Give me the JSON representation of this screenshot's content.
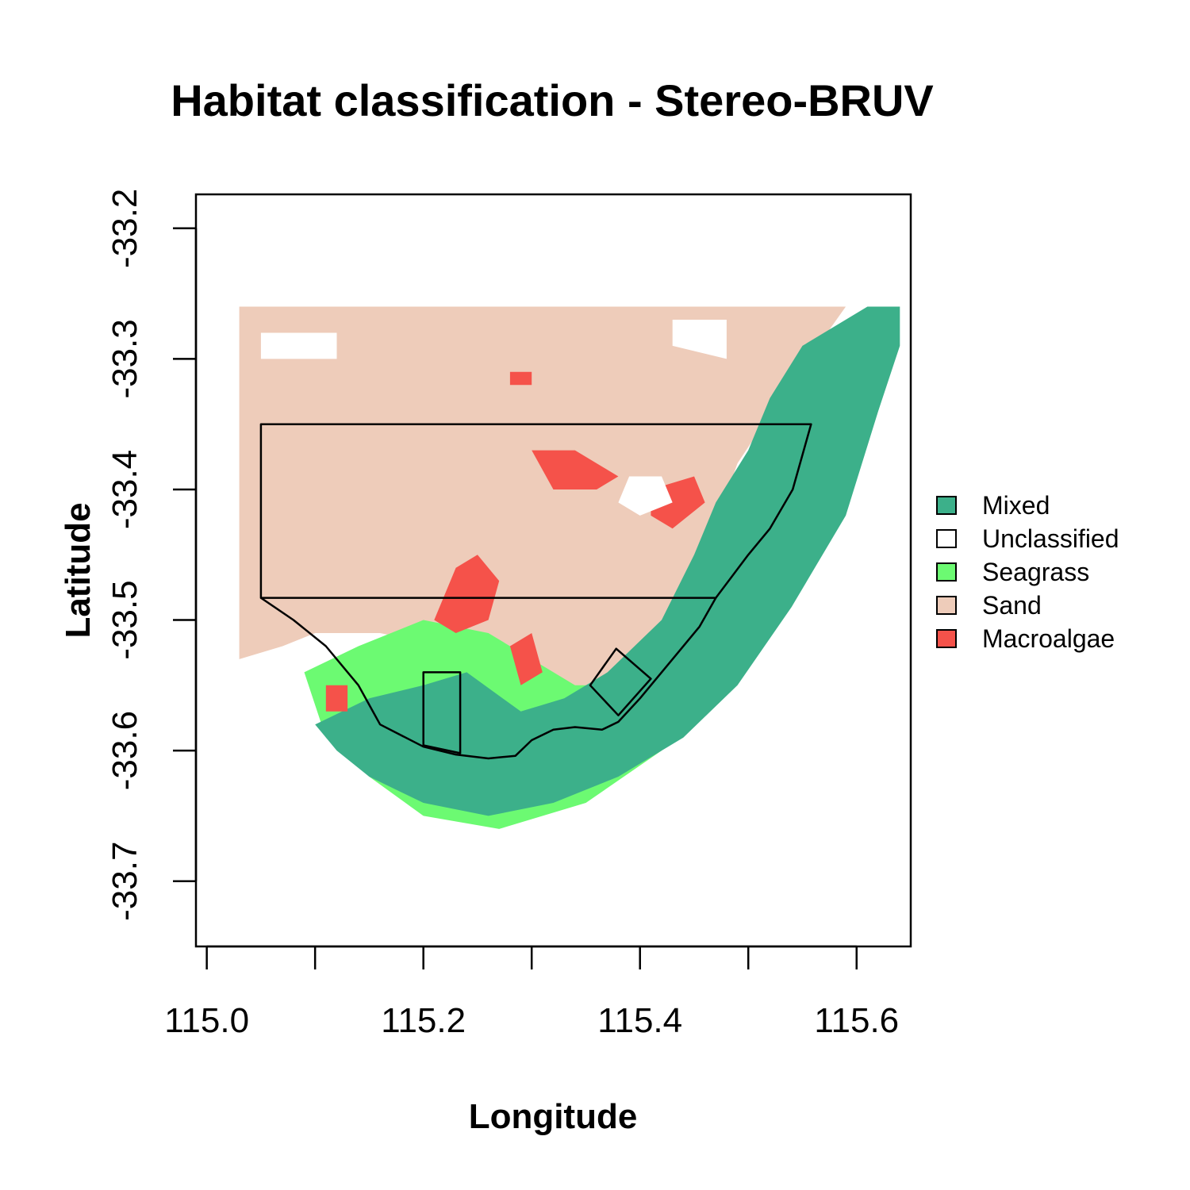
{
  "chart_data": {
    "type": "heatmap",
    "title": "Habitat classification - Stereo-BRUV",
    "xlabel": "Longitude",
    "ylabel": "Latitude",
    "xlim": [
      114.99,
      115.65
    ],
    "ylim": [
      -33.75,
      -33.174
    ],
    "x_ticks": [
      {
        "value": 115.0,
        "label": "115.0"
      },
      {
        "value": 115.1,
        "label": ""
      },
      {
        "value": 115.2,
        "label": "115.2"
      },
      {
        "value": 115.3,
        "label": ""
      },
      {
        "value": 115.4,
        "label": "115.4"
      },
      {
        "value": 115.5,
        "label": ""
      },
      {
        "value": 115.6,
        "label": "115.6"
      }
    ],
    "y_ticks": [
      {
        "value": -33.2,
        "label": "-33.2"
      },
      {
        "value": -33.3,
        "label": "-33.3"
      },
      {
        "value": -33.4,
        "label": "-33.4"
      },
      {
        "value": -33.5,
        "label": "-33.5"
      },
      {
        "value": -33.6,
        "label": "-33.6"
      },
      {
        "value": -33.7,
        "label": "-33.7"
      }
    ],
    "legend_position": "right",
    "classes": [
      {
        "name": "Mixed",
        "color": "#3CB08A"
      },
      {
        "name": "Unclassified",
        "color": "#FFFFFF"
      },
      {
        "name": "Seagrass",
        "color": "#6CFA72"
      },
      {
        "name": "Sand",
        "color": "#EECCBA"
      },
      {
        "name": "Macroalgae",
        "color": "#F5524A"
      }
    ],
    "regions": [
      {
        "class": "Sand",
        "polygon": [
          [
            115.03,
            -33.26
          ],
          [
            115.59,
            -33.26
          ],
          [
            115.53,
            -33.33
          ],
          [
            115.49,
            -33.38
          ],
          [
            115.46,
            -33.45
          ],
          [
            115.42,
            -33.52
          ],
          [
            115.38,
            -33.55
          ],
          [
            115.33,
            -33.56
          ],
          [
            115.28,
            -33.56
          ],
          [
            115.22,
            -33.52
          ],
          [
            115.16,
            -33.51
          ],
          [
            115.1,
            -33.51
          ],
          [
            115.07,
            -33.52
          ],
          [
            115.03,
            -33.53
          ]
        ]
      },
      {
        "class": "Seagrass",
        "polygon": [
          [
            115.09,
            -33.54
          ],
          [
            115.14,
            -33.52
          ],
          [
            115.2,
            -33.5
          ],
          [
            115.26,
            -33.51
          ],
          [
            115.3,
            -33.53
          ],
          [
            115.34,
            -33.55
          ],
          [
            115.38,
            -33.55
          ],
          [
            115.43,
            -33.52
          ],
          [
            115.47,
            -33.45
          ],
          [
            115.5,
            -33.4
          ],
          [
            115.52,
            -33.35
          ],
          [
            115.56,
            -33.3
          ],
          [
            115.58,
            -33.38
          ],
          [
            115.5,
            -33.52
          ],
          [
            115.42,
            -33.6
          ],
          [
            115.35,
            -33.64
          ],
          [
            115.27,
            -33.66
          ],
          [
            115.2,
            -33.65
          ],
          [
            115.15,
            -33.62
          ],
          [
            115.11,
            -33.59
          ]
        ]
      },
      {
        "class": "Mixed",
        "polygon": [
          [
            115.1,
            -33.58
          ],
          [
            115.15,
            -33.56
          ],
          [
            115.2,
            -33.55
          ],
          [
            115.24,
            -33.54
          ],
          [
            115.29,
            -33.57
          ],
          [
            115.33,
            -33.56
          ],
          [
            115.37,
            -33.54
          ],
          [
            115.42,
            -33.5
          ],
          [
            115.45,
            -33.45
          ],
          [
            115.47,
            -33.41
          ],
          [
            115.5,
            -33.37
          ],
          [
            115.52,
            -33.33
          ],
          [
            115.55,
            -33.29
          ],
          [
            115.61,
            -33.26
          ],
          [
            115.64,
            -33.26
          ],
          [
            115.64,
            -33.29
          ],
          [
            115.62,
            -33.34
          ],
          [
            115.59,
            -33.42
          ],
          [
            115.54,
            -33.49
          ],
          [
            115.49,
            -33.55
          ],
          [
            115.44,
            -33.59
          ],
          [
            115.38,
            -33.62
          ],
          [
            115.32,
            -33.64
          ],
          [
            115.26,
            -33.65
          ],
          [
            115.2,
            -33.64
          ],
          [
            115.15,
            -33.62
          ],
          [
            115.12,
            -33.6
          ]
        ]
      },
      {
        "class": "Macroalgae",
        "polygon": [
          [
            115.21,
            -33.5
          ],
          [
            115.23,
            -33.46
          ],
          [
            115.25,
            -33.45
          ],
          [
            115.27,
            -33.47
          ],
          [
            115.26,
            -33.5
          ],
          [
            115.23,
            -33.51
          ]
        ]
      },
      {
        "class": "Macroalgae",
        "polygon": [
          [
            115.3,
            -33.37
          ],
          [
            115.34,
            -33.37
          ],
          [
            115.38,
            -33.39
          ],
          [
            115.36,
            -33.4
          ],
          [
            115.32,
            -33.4
          ]
        ]
      },
      {
        "class": "Macroalgae",
        "polygon": [
          [
            115.41,
            -33.4
          ],
          [
            115.45,
            -33.39
          ],
          [
            115.46,
            -33.41
          ],
          [
            115.43,
            -33.43
          ],
          [
            115.41,
            -33.42
          ]
        ]
      },
      {
        "class": "Macroalgae",
        "polygon": [
          [
            115.28,
            -33.52
          ],
          [
            115.3,
            -33.51
          ],
          [
            115.31,
            -33.54
          ],
          [
            115.29,
            -33.55
          ]
        ]
      },
      {
        "class": "Macroalgae",
        "polygon": [
          [
            115.11,
            -33.55
          ],
          [
            115.13,
            -33.55
          ],
          [
            115.13,
            -33.57
          ],
          [
            115.11,
            -33.57
          ]
        ]
      },
      {
        "class": "Macroalgae",
        "polygon": [
          [
            115.28,
            -33.31
          ],
          [
            115.3,
            -33.31
          ],
          [
            115.3,
            -33.32
          ],
          [
            115.28,
            -33.32
          ]
        ]
      },
      {
        "class": "Unclassified",
        "polygon": [
          [
            115.39,
            -33.39
          ],
          [
            115.42,
            -33.39
          ],
          [
            115.43,
            -33.41
          ],
          [
            115.4,
            -33.42
          ],
          [
            115.38,
            -33.41
          ]
        ]
      },
      {
        "class": "Unclassified",
        "polygon": [
          [
            115.43,
            -33.27
          ],
          [
            115.48,
            -33.27
          ],
          [
            115.48,
            -33.3
          ],
          [
            115.43,
            -33.29
          ]
        ]
      },
      {
        "class": "Unclassified",
        "polygon": [
          [
            115.05,
            -33.28
          ],
          [
            115.12,
            -33.28
          ],
          [
            115.12,
            -33.3
          ],
          [
            115.05,
            -33.3
          ]
        ]
      }
    ],
    "outlines": [
      {
        "name": "upper-rectangle",
        "closed": true,
        "points": [
          [
            115.05,
            -33.35
          ],
          [
            115.56,
            -33.35
          ],
          [
            115.05,
            -33.48
          ],
          [
            115.05,
            -33.35
          ]
        ]
      },
      {
        "name": "upper-rectangle-full",
        "closed": true,
        "points": [
          [
            115.05,
            -33.35
          ],
          [
            115.558,
            -33.35
          ],
          [
            115.541,
            -33.4
          ],
          [
            115.52,
            -33.43
          ],
          [
            115.5,
            -33.45
          ],
          [
            115.47,
            -33.483
          ],
          [
            115.05,
            -33.483
          ]
        ]
      },
      {
        "name": "sanctuary-boundary",
        "closed": false,
        "points": [
          [
            115.05,
            -33.483
          ],
          [
            115.08,
            -33.5
          ],
          [
            115.11,
            -33.52
          ],
          [
            115.14,
            -33.55
          ],
          [
            115.16,
            -33.58
          ],
          [
            115.2,
            -33.597
          ],
          [
            115.23,
            -33.603
          ],
          [
            115.26,
            -33.606
          ],
          [
            115.285,
            -33.604
          ],
          [
            115.3,
            -33.592
          ],
          [
            115.32,
            -33.584
          ],
          [
            115.34,
            -33.582
          ],
          [
            115.365,
            -33.584
          ],
          [
            115.38,
            -33.578
          ],
          [
            115.4,
            -33.56
          ],
          [
            115.43,
            -33.53
          ],
          [
            115.455,
            -33.505
          ],
          [
            115.47,
            -33.483
          ]
        ]
      },
      {
        "name": "small-rectangle",
        "closed": true,
        "points": [
          [
            115.2,
            -33.54
          ],
          [
            115.234,
            -33.54
          ],
          [
            115.234,
            -33.602
          ],
          [
            115.2,
            -33.596
          ]
        ]
      },
      {
        "name": "diamond",
        "closed": true,
        "points": [
          [
            115.378,
            -33.522
          ],
          [
            115.41,
            -33.545
          ],
          [
            115.38,
            -33.573
          ],
          [
            115.354,
            -33.55
          ]
        ]
      }
    ]
  }
}
